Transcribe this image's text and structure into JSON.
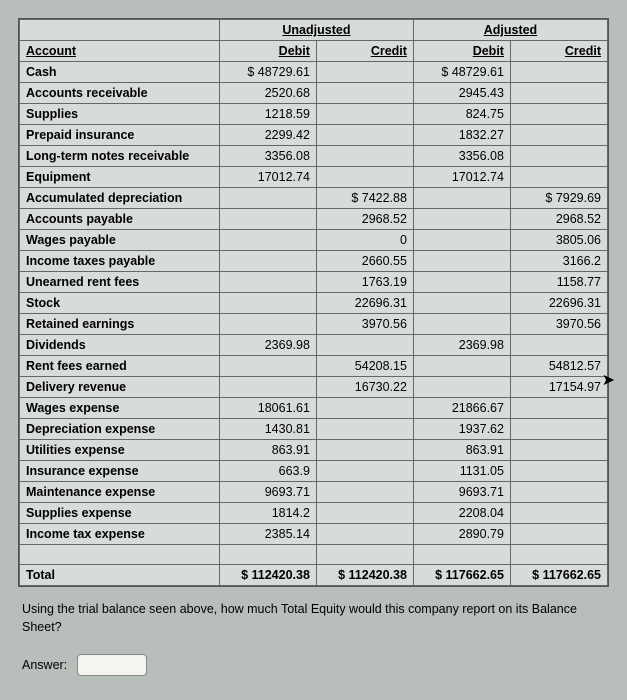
{
  "headers": {
    "account": "Account",
    "unadjusted": "Unadjusted",
    "adjusted": "Adjusted",
    "debit": "Debit",
    "credit": "Credit"
  },
  "rows": [
    {
      "a": "Cash",
      "ud": "$ 48729.61",
      "uc": "",
      "ad": "$ 48729.61",
      "ac": ""
    },
    {
      "a": "Accounts receivable",
      "ud": "2520.68",
      "uc": "",
      "ad": "2945.43",
      "ac": ""
    },
    {
      "a": "Supplies",
      "ud": "1218.59",
      "uc": "",
      "ad": "824.75",
      "ac": ""
    },
    {
      "a": "Prepaid insurance",
      "ud": "2299.42",
      "uc": "",
      "ad": "1832.27",
      "ac": ""
    },
    {
      "a": "Long-term notes receivable",
      "ud": "3356.08",
      "uc": "",
      "ad": "3356.08",
      "ac": ""
    },
    {
      "a": "Equipment",
      "ud": "17012.74",
      "uc": "",
      "ad": "17012.74",
      "ac": ""
    },
    {
      "a": "Accumulated depreciation",
      "ud": "",
      "uc": "$ 7422.88",
      "ad": "",
      "ac": "$ 7929.69"
    },
    {
      "a": "Accounts payable",
      "ud": "",
      "uc": "2968.52",
      "ad": "",
      "ac": "2968.52"
    },
    {
      "a": "Wages payable",
      "ud": "",
      "uc": "0",
      "ad": "",
      "ac": "3805.06"
    },
    {
      "a": "Income taxes payable",
      "ud": "",
      "uc": "2660.55",
      "ad": "",
      "ac": "3166.2"
    },
    {
      "a": "Unearned rent fees",
      "ud": "",
      "uc": "1763.19",
      "ad": "",
      "ac": "1158.77"
    },
    {
      "a": "Stock",
      "ud": "",
      "uc": "22696.31",
      "ad": "",
      "ac": "22696.31"
    },
    {
      "a": "Retained earnings",
      "ud": "",
      "uc": "3970.56",
      "ad": "",
      "ac": "3970.56"
    },
    {
      "a": "Dividends",
      "ud": "2369.98",
      "uc": "",
      "ad": "2369.98",
      "ac": ""
    },
    {
      "a": "Rent fees earned",
      "ud": "",
      "uc": "54208.15",
      "ad": "",
      "ac": "54812.57"
    },
    {
      "a": "Delivery revenue",
      "ud": "",
      "uc": "16730.22",
      "ad": "",
      "ac": "17154.97"
    },
    {
      "a": "Wages expense",
      "ud": "18061.61",
      "uc": "",
      "ad": "21866.67",
      "ac": ""
    },
    {
      "a": "Depreciation expense",
      "ud": "1430.81",
      "uc": "",
      "ad": "1937.62",
      "ac": ""
    },
    {
      "a": "Utilities expense",
      "ud": "863.91",
      "uc": "",
      "ad": "863.91",
      "ac": ""
    },
    {
      "a": "Insurance expense",
      "ud": "663.9",
      "uc": "",
      "ad": "1131.05",
      "ac": ""
    },
    {
      "a": "Maintenance expense",
      "ud": "9693.71",
      "uc": "",
      "ad": "9693.71",
      "ac": ""
    },
    {
      "a": "Supplies expense",
      "ud": "1814.2",
      "uc": "",
      "ad": "2208.04",
      "ac": ""
    },
    {
      "a": "Income tax expense",
      "ud": "2385.14",
      "uc": "",
      "ad": "2890.79",
      "ac": ""
    }
  ],
  "total": {
    "label": "Total",
    "ud": "$ 112420.38",
    "uc": "$ 112420.38",
    "ad": "$ 117662.65",
    "ac": "$ 117662.65"
  },
  "question": "Using the trial balance seen above, how much Total Equity would this company report on its Balance Sheet?",
  "answer_label": "Answer:",
  "style": {
    "col_widths": [
      "34%",
      "16.5%",
      "16.5%",
      "16.5%",
      "16.5%"
    ],
    "bg": "#d8dcd9",
    "border": "#666",
    "fontsize": 12.5
  }
}
